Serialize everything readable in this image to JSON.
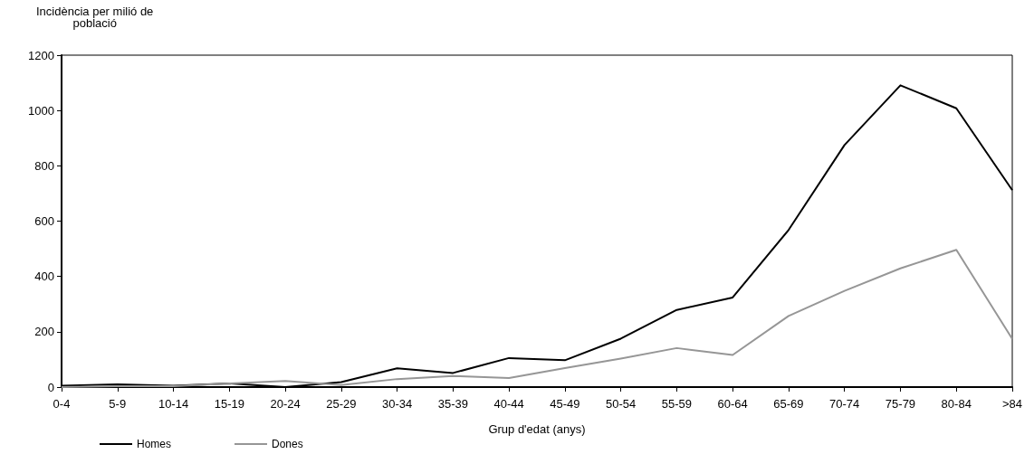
{
  "chart_data": {
    "type": "line",
    "ylabel": "Incidència per milió de\npoblació",
    "xlabel": "Grup d'edat (anys)",
    "categories": [
      "0-4",
      "5-9",
      "10-14",
      "15-19",
      "20-24",
      "25-29",
      "30-34",
      "35-39",
      "40-44",
      "45-49",
      "50-54",
      "55-59",
      "60-64",
      "65-69",
      "70-74",
      "75-79",
      "80-84",
      ">84"
    ],
    "series": [
      {
        "name": "Homes",
        "color": "#000000",
        "values": [
          5,
          10,
          5,
          13,
          0,
          18,
          68,
          51,
          105,
          97,
          175,
          279,
          324,
          568,
          875,
          1091,
          1008,
          712
        ]
      },
      {
        "name": "Dones",
        "color": "#969696",
        "values": [
          0,
          3,
          3,
          13,
          22,
          7,
          29,
          40,
          33,
          69,
          103,
          141,
          116,
          257,
          348,
          429,
          496,
          174
        ]
      }
    ],
    "ylim": [
      0,
      1200
    ],
    "yticks": [
      0,
      200,
      400,
      600,
      800,
      1000,
      1200
    ],
    "grid": false,
    "legend": "bottom left",
    "marker": "none",
    "line_style": "solid"
  }
}
